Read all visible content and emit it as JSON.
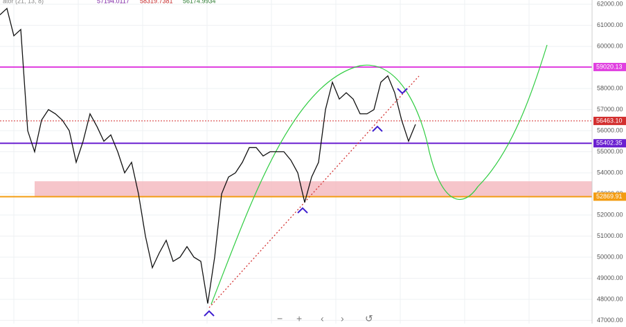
{
  "chart_data": {
    "type": "line",
    "indicator": {
      "name": "ator (21, 13, 8)",
      "readings": [
        {
          "label": "57194.0117",
          "color": "#7b1fa2"
        },
        {
          "label": "58319.7381",
          "color": "#c62828"
        },
        {
          "label": "56174.9934",
          "color": "#2e7d32"
        }
      ]
    },
    "values": [
      61500,
      61800,
      60500,
      60800,
      56000,
      55000,
      56500,
      57000,
      56800,
      56500,
      56000,
      54500,
      55500,
      56800,
      56200,
      55500,
      55800,
      55000,
      54000,
      54500,
      53000,
      51000,
      49500,
      50200,
      50800,
      49800,
      50000,
      50500,
      50000,
      49800,
      47800,
      50000,
      53000,
      53800,
      54000,
      54500,
      55200,
      55200,
      54800,
      55000,
      55000,
      55000,
      54600,
      54000,
      52600,
      53800,
      54500,
      57000,
      58300,
      57500,
      57800,
      57500,
      56800,
      56800,
      57000,
      58300,
      58600,
      57800,
      56500,
      55500,
      56300
    ],
    "color": "#111111",
    "ylim": [
      46850,
      62200
    ],
    "yticks": [
      {
        "value": 47000,
        "label": "47000.00"
      },
      {
        "value": 48000,
        "label": "48000.00"
      },
      {
        "value": 49000,
        "label": "49000.00"
      },
      {
        "value": 50000,
        "label": "50000.00"
      },
      {
        "value": 51000,
        "label": "51000.00"
      },
      {
        "value": 52000,
        "label": "52000.00"
      },
      {
        "value": 53000,
        "label": "53000.00"
      },
      {
        "value": 54000,
        "label": "54000.00"
      },
      {
        "value": 55000,
        "label": "55000.00"
      },
      {
        "value": 56000,
        "label": "56000.00"
      },
      {
        "value": 57000,
        "label": "57000.00"
      },
      {
        "value": 58000,
        "label": "58000.00"
      },
      {
        "value": 59000,
        "label": "59000.00"
      },
      {
        "value": 60000,
        "label": "60000.00"
      },
      {
        "value": 61000,
        "label": "61000.00"
      },
      {
        "value": 62000,
        "label": "62000.00"
      }
    ],
    "grid": true,
    "levels": [
      {
        "value": 59020.13,
        "label": "59020.13",
        "color": "#e040e0"
      },
      {
        "value": 56463.1,
        "label": "56463.10",
        "color": "#d32f2f"
      },
      {
        "value": 55402.35,
        "label": "55402.35",
        "color": "#6a1fd0"
      },
      {
        "value": 52869.91,
        "label": "52869.91",
        "color": "#f39c12"
      }
    ],
    "zone": {
      "from": 52869.91,
      "to": 53600,
      "color": "#f4b6bd"
    }
  }
}
